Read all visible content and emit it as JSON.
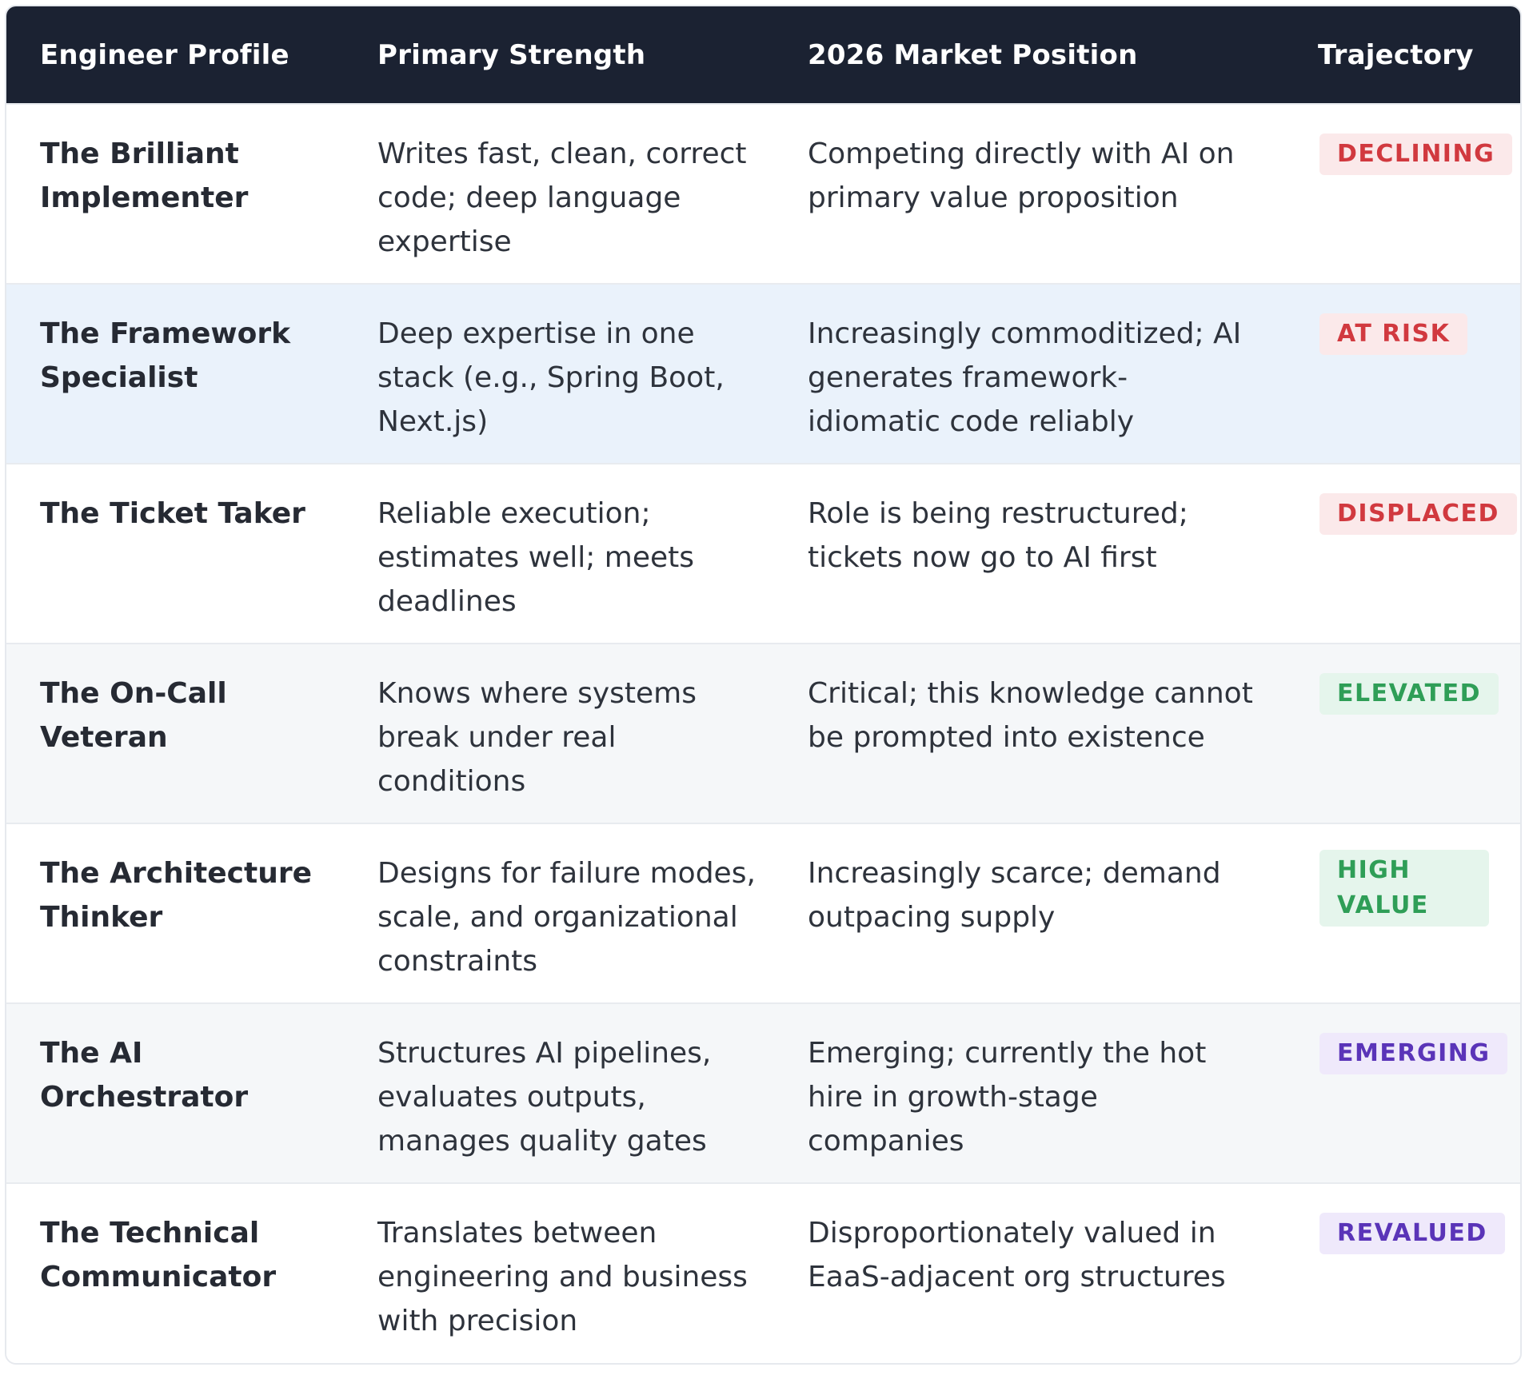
{
  "table": {
    "headers": [
      "Engineer Profile",
      "Primary Strength",
      "2026 Market Position",
      "Trajectory"
    ],
    "rows": [
      {
        "profile": "The Brilliant Implementer",
        "strength": "Writes fast, clean, correct code; deep language expertise",
        "market": "Competing directly with AI on primary value proposition",
        "trajectory": "DECLINING",
        "badge_color": "#d1393f"
      },
      {
        "profile": "The Framework Specialist",
        "strength": "Deep expertise in one stack (e.g., Spring Boot, Next.js)",
        "market": "Increasingly commoditized; AI generates framework-idiomatic code reliably",
        "trajectory": "AT RISK",
        "badge_color": "#d1393f"
      },
      {
        "profile": "The Ticket Taker",
        "strength": "Reliable execution; estimates well; meets deadlines",
        "market": "Role is being restructured; tickets now go to AI first",
        "trajectory": "DISPLACED",
        "badge_color": "#d1393f"
      },
      {
        "profile": "The On-Call Veteran",
        "strength": "Knows where systems break under real conditions",
        "market": "Critical; this knowledge cannot be prompted into existence",
        "trajectory": "ELEVATED",
        "badge_color": "#2f9e57"
      },
      {
        "profile": "The Architecture Thinker",
        "strength": "Designs for failure modes, scale, and organizational constraints",
        "market": "Increasingly scarce; demand outpacing supply",
        "trajectory": "HIGH VALUE",
        "badge_color": "#2f9e57"
      },
      {
        "profile": "The AI Orchestrator",
        "strength": "Structures AI pipelines, evaluates outputs, manages quality gates",
        "market": "Emerging; currently the hot hire in growth-stage companies",
        "trajectory": "EMERGING",
        "badge_color": "#5a34b8"
      },
      {
        "profile": "The Technical Communicator",
        "strength": "Translates between engineering and business with precision",
        "market": "Disproportionately valued in EaaS-adjacent org structures",
        "trajectory": "REVALUED",
        "badge_color": "#5a34b8"
      }
    ]
  }
}
